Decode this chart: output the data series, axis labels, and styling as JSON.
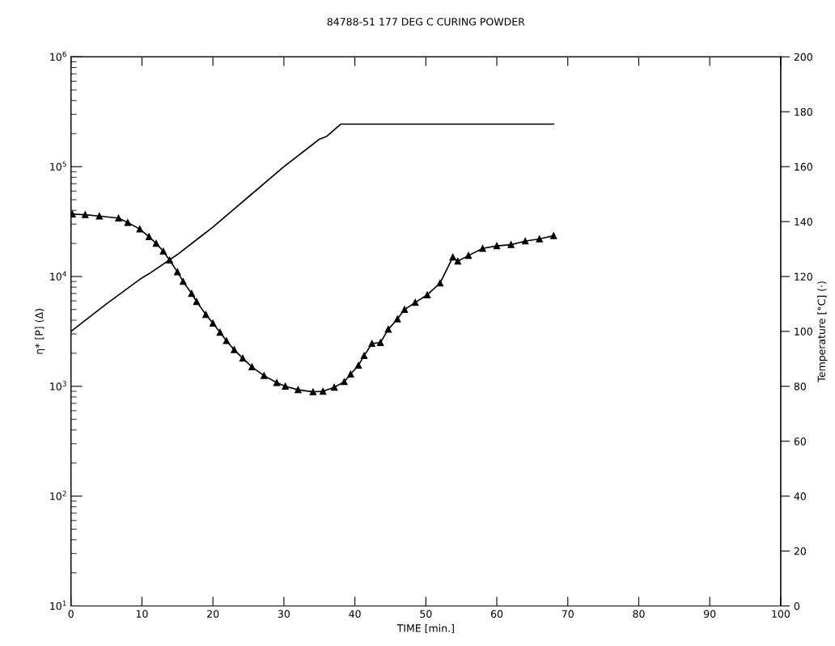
{
  "chart_data": {
    "type": "line",
    "title": "84788-51 177 DEG C CURING POWDER",
    "xlabel": "TIME [min.]",
    "ylabel": "η* [P] (Δ)",
    "y2label": "Temperature [°C] (·)",
    "log": "y",
    "grid": false,
    "xlim": [
      0,
      100
    ],
    "xticks": [
      0,
      10,
      20,
      30,
      40,
      50,
      60,
      70,
      80,
      90,
      100
    ],
    "ylim": [
      10,
      1000000
    ],
    "yticks": [
      {
        "value": 10,
        "label": "10$^{1}$"
      },
      {
        "value": 100,
        "label": "10$^{2}$"
      },
      {
        "value": 1000,
        "label": "10$^{3}$"
      },
      {
        "value": 10000,
        "label": "10$^{4}$"
      },
      {
        "value": 100000,
        "label": "10$^{5}$"
      },
      {
        "value": 1000000,
        "label": "10$^{6}$"
      }
    ],
    "y2lim": [
      0,
      200
    ],
    "y2ticks": [
      0,
      20,
      40,
      60,
      80,
      100,
      120,
      140,
      160,
      180,
      200
    ],
    "series": [
      {
        "color": "#000000",
        "marker": "triangle",
        "line_style": "solid",
        "x": [
          0.2,
          2,
          4,
          6.7,
          8,
          9.7,
          11,
          12,
          13,
          13.9,
          15,
          15.8,
          17,
          17.7,
          19,
          20,
          21,
          21.9,
          23,
          24.2,
          25.5,
          27.2,
          29,
          30.2,
          32,
          34.1,
          35.5,
          37.1,
          38.5,
          39.4,
          40.5,
          41.3,
          42.4,
          43.6,
          44.7,
          46,
          47,
          48.5,
          50.2,
          52,
          53.8,
          54.5,
          56,
          58,
          60,
          62,
          64,
          66,
          68
        ],
        "values": [
          37000,
          36500,
          35500,
          34000,
          31000,
          27000,
          23000,
          20000,
          17000,
          14100,
          11000,
          9000,
          7000,
          5900,
          4500,
          3750,
          3100,
          2600,
          2150,
          1800,
          1500,
          1250,
          1080,
          1000,
          930,
          890,
          900,
          980,
          1100,
          1290,
          1550,
          1900,
          2450,
          2500,
          3300,
          4100,
          5000,
          5800,
          6800,
          8700,
          15000,
          13800,
          15500,
          18000,
          19000,
          19500,
          21000,
          22000,
          23500
        ]
      },
      {
        "color": "#000000",
        "axis": "y2",
        "marker": "none",
        "line_style": "solid",
        "x": [
          0,
          5,
          10,
          11,
          15,
          17,
          20,
          25,
          30,
          34,
          35,
          36,
          38,
          68
        ],
        "values": [
          100,
          110,
          119.5,
          121,
          128,
          132,
          138,
          149,
          160,
          168,
          170,
          171,
          175.5,
          175.5
        ]
      }
    ]
  }
}
